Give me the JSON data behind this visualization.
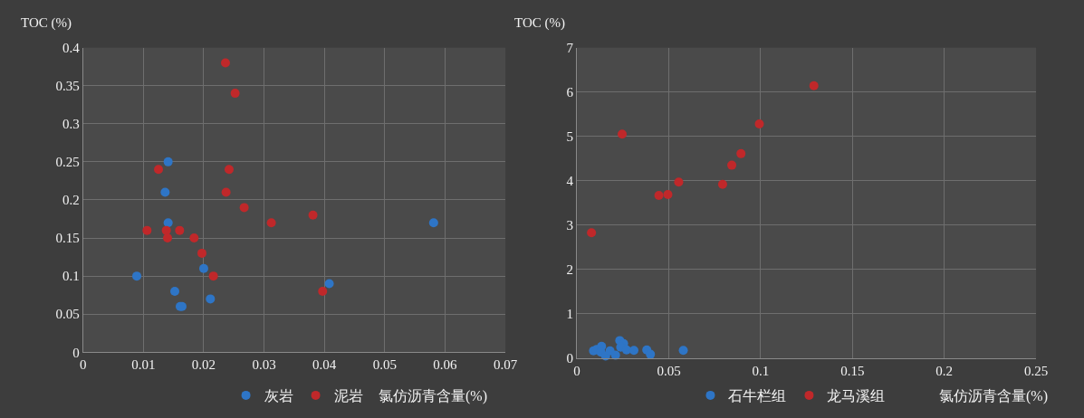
{
  "chart_data": [
    {
      "type": "scatter",
      "ylabel": "TOC (%)",
      "xlabel": "氯仿沥青含量(%)",
      "xlim": [
        0,
        0.07
      ],
      "xticks": [
        0,
        0.01,
        0.02,
        0.03,
        0.04,
        0.05,
        0.06,
        0.07
      ],
      "ylim": [
        0,
        0.4
      ],
      "yticks": [
        0,
        0.05,
        0.1,
        0.15,
        0.2,
        0.25,
        0.3,
        0.35,
        0.4
      ],
      "grid": true,
      "legend": "bottom",
      "marker": "circle",
      "series": [
        {
          "name": "灰岩",
          "color": "#2e75c6",
          "x": [
            0.0141,
            0.0136,
            0.0141,
            0.0089,
            0.02,
            0.0152,
            0.0161,
            0.0164,
            0.0211,
            0.0408,
            0.0581
          ],
          "values": [
            0.25,
            0.21,
            0.17,
            0.1,
            0.11,
            0.08,
            0.06,
            0.06,
            0.07,
            0.09,
            0.17
          ]
        },
        {
          "name": "泥岩",
          "color": "#c0282a",
          "x": [
            0.0236,
            0.0252,
            0.0125,
            0.0242,
            0.0237,
            0.0267,
            0.0312,
            0.0381,
            0.0106,
            0.0138,
            0.016,
            0.014,
            0.0184,
            0.0197,
            0.0216,
            0.0397
          ],
          "values": [
            0.38,
            0.34,
            0.24,
            0.24,
            0.21,
            0.19,
            0.17,
            0.18,
            0.16,
            0.16,
            0.16,
            0.15,
            0.15,
            0.13,
            0.1,
            0.08
          ]
        }
      ]
    },
    {
      "type": "scatter",
      "ylabel": "TOC (%)",
      "xlabel": "氯仿沥青含量(%)",
      "xlim": [
        0,
        0.25
      ],
      "xticks": [
        0,
        0.05,
        0.1,
        0.15,
        0.2,
        0.25
      ],
      "ylim": [
        0,
        7
      ],
      "yticks": [
        0,
        1,
        2,
        3,
        4,
        5,
        6,
        7
      ],
      "grid": true,
      "legend": "bottom",
      "marker": "circle",
      "series": [
        {
          "name": "石牛栏组",
          "color": "#2e75c6",
          "x": [
            0.009,
            0.0107,
            0.0134,
            0.013,
            0.0156,
            0.018,
            0.021,
            0.0233,
            0.0254,
            0.0238,
            0.027,
            0.031,
            0.038,
            0.04,
            0.0579
          ],
          "values": [
            0.17,
            0.2,
            0.27,
            0.14,
            0.05,
            0.17,
            0.07,
            0.4,
            0.33,
            0.25,
            0.19,
            0.18,
            0.19,
            0.09,
            0.18
          ]
        },
        {
          "name": "龙马溪组",
          "color": "#c0282a",
          "x": [
            0.0079,
            0.0246,
            0.0446,
            0.0495,
            0.0554,
            0.0793,
            0.0843,
            0.0893,
            0.0993,
            0.129
          ],
          "values": [
            2.83,
            5.05,
            3.67,
            3.69,
            3.97,
            3.92,
            4.35,
            4.61,
            5.28,
            6.14
          ]
        }
      ]
    }
  ]
}
